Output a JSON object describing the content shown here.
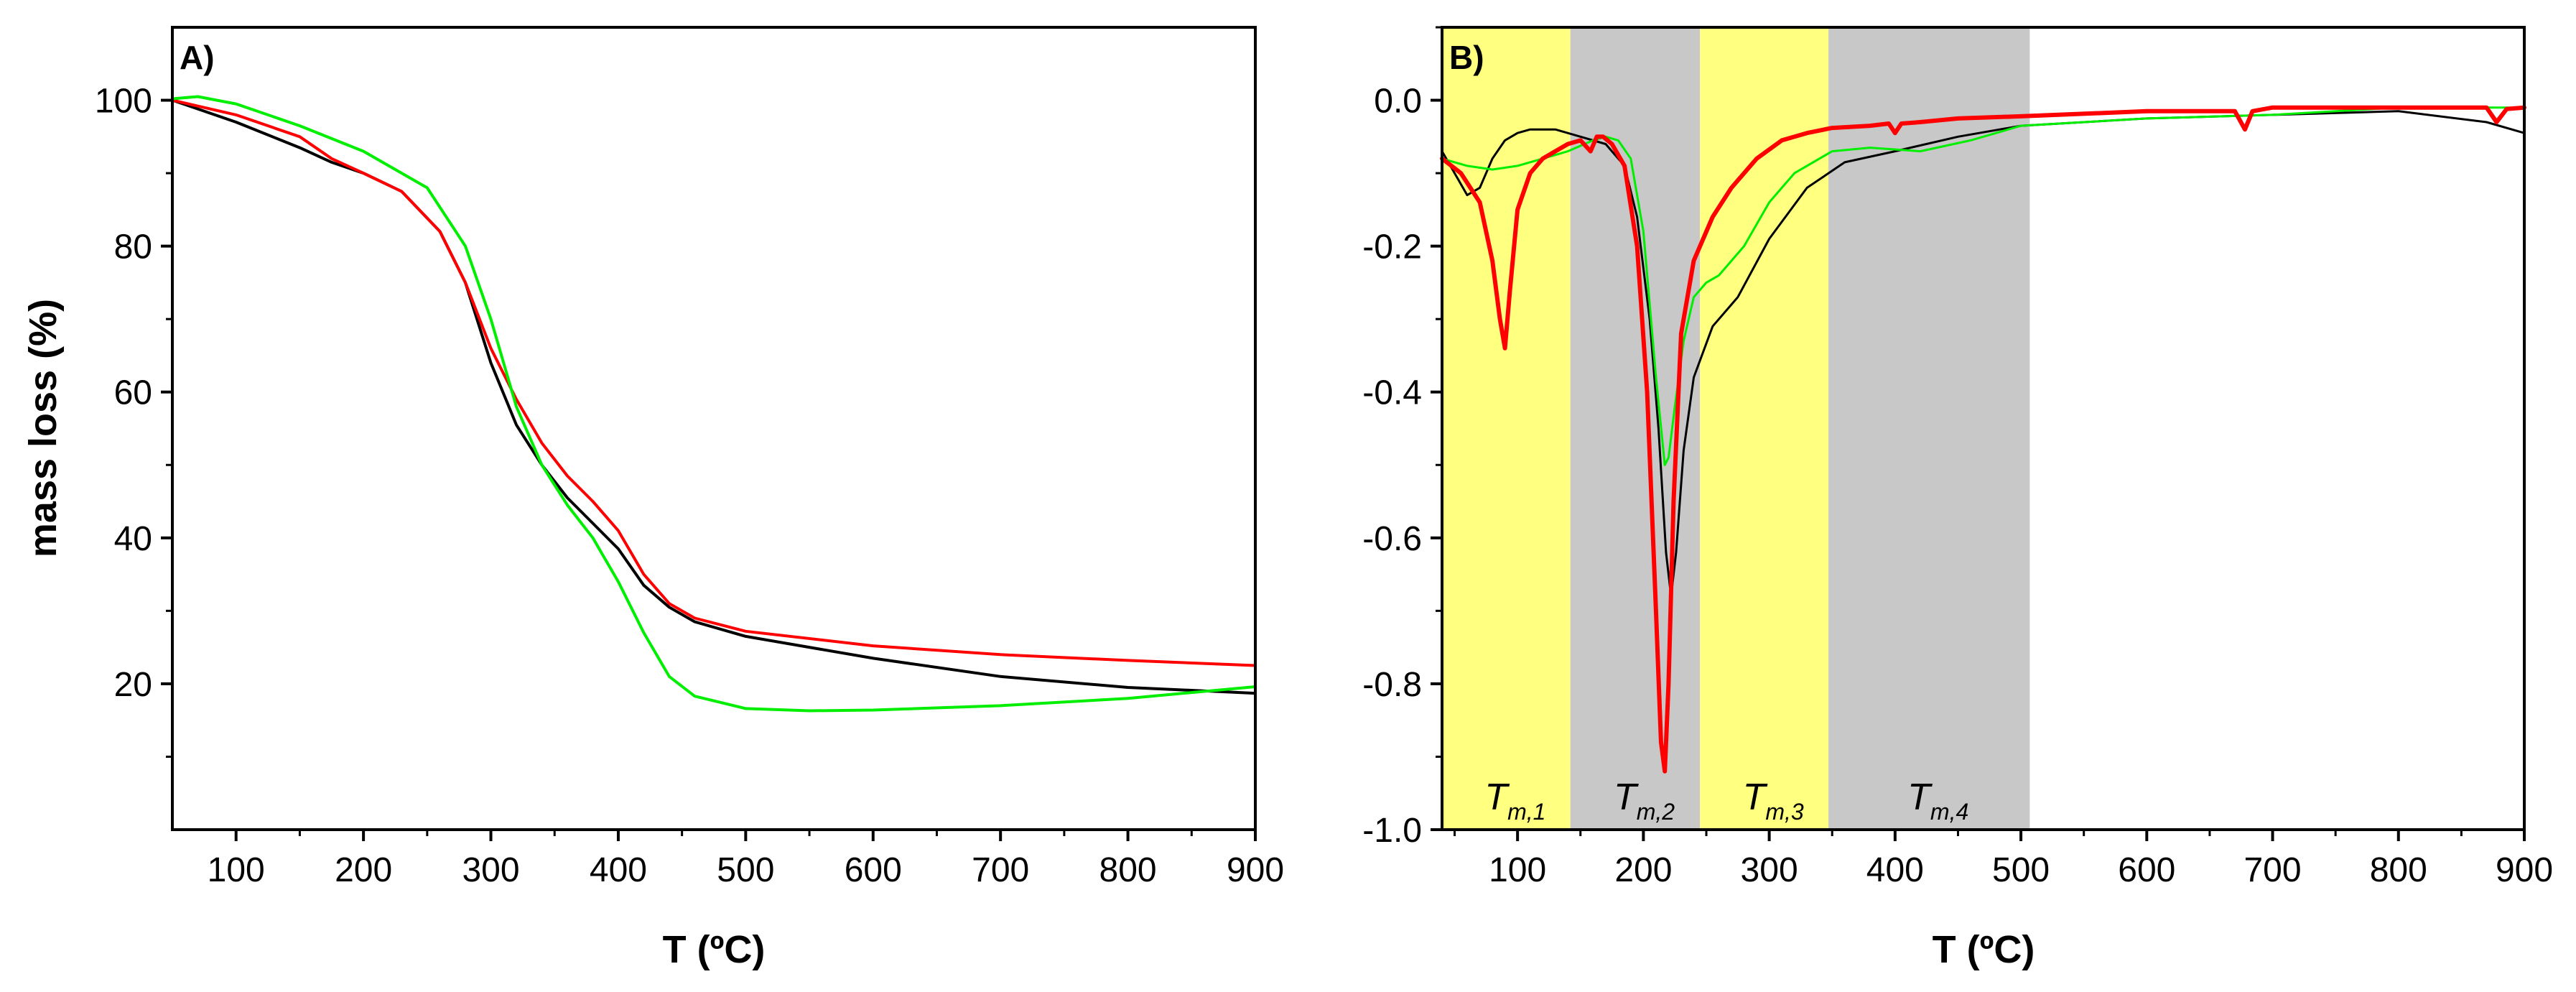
{
  "chart_data": [
    {
      "type": "line",
      "panel_label": "A)",
      "xlabel": "T (ºC)",
      "ylabel": "mass loss (%)",
      "xlim": [
        50,
        900
      ],
      "ylim": [
        0,
        110
      ],
      "xticks": [
        100,
        200,
        300,
        400,
        500,
        600,
        700,
        800,
        900
      ],
      "yticks": [
        20,
        40,
        60,
        80,
        100
      ],
      "series": [
        {
          "name": "black",
          "color": "#000000",
          "x": [
            50,
            100,
            150,
            175,
            200,
            230,
            260,
            280,
            300,
            320,
            340,
            360,
            380,
            400,
            420,
            440,
            460,
            500,
            600,
            700,
            800,
            900
          ],
          "y": [
            100,
            97,
            93.5,
            91.5,
            90,
            87.5,
            82,
            75,
            64,
            55.5,
            50,
            45.5,
            42,
            38.5,
            33.5,
            30.5,
            28.5,
            26.5,
            23.5,
            21,
            19.5,
            18.7
          ]
        },
        {
          "name": "red",
          "color": "#ff0000",
          "x": [
            50,
            100,
            150,
            175,
            200,
            230,
            260,
            280,
            300,
            320,
            340,
            360,
            380,
            400,
            420,
            440,
            460,
            500,
            600,
            700,
            800,
            900
          ],
          "y": [
            100,
            98,
            95,
            92,
            90,
            87.5,
            82,
            75,
            66,
            59,
            53,
            48.5,
            45,
            41,
            35,
            31,
            29,
            27.2,
            25.2,
            24,
            23.2,
            22.5
          ]
        },
        {
          "name": "green",
          "color": "#00ee00",
          "x": [
            50,
            70,
            100,
            150,
            200,
            250,
            280,
            300,
            320,
            340,
            360,
            380,
            400,
            420,
            440,
            460,
            500,
            550,
            600,
            700,
            800,
            900
          ],
          "y": [
            100.2,
            100.5,
            99.5,
            96.5,
            93,
            88,
            80,
            70,
            58,
            50,
            44.5,
            40,
            34,
            27,
            21,
            18.3,
            16.6,
            16.3,
            16.4,
            17,
            18,
            19.6
          ]
        }
      ]
    },
    {
      "type": "line",
      "panel_label": "B)",
      "xlabel": "T (ºC)",
      "ylabel": "",
      "xlim": [
        40,
        900
      ],
      "ylim": [
        -1.0,
        0.1
      ],
      "xticks": [
        100,
        200,
        300,
        400,
        500,
        600,
        700,
        800,
        900
      ],
      "yticks": [
        -1.0,
        -0.8,
        -0.6,
        -0.4,
        -0.2,
        0.0
      ],
      "ytick_labels": [
        "-1.0",
        "-0.8",
        "-0.6",
        "-0.4",
        "-0.2",
        "0.0"
      ],
      "regions": [
        {
          "from": 40,
          "to": 142,
          "color": "#ffff80",
          "label_main": "T",
          "label_sub": "m,1"
        },
        {
          "from": 142,
          "to": 245,
          "color": "#c8c8c8",
          "label_main": "T",
          "label_sub": "m,2"
        },
        {
          "from": 245,
          "to": 347,
          "color": "#ffff80",
          "label_main": "T",
          "label_sub": "m,3"
        },
        {
          "from": 347,
          "to": 507,
          "color": "#c8c8c8",
          "label_main": "T",
          "label_sub": "m,4"
        }
      ],
      "series": [
        {
          "name": "black",
          "color": "#000000",
          "width": 3,
          "x": [
            40,
            50,
            60,
            70,
            80,
            90,
            100,
            110,
            130,
            150,
            170,
            185,
            195,
            205,
            212,
            218,
            222,
            226,
            232,
            240,
            255,
            275,
            300,
            330,
            360,
            400,
            450,
            500,
            600,
            700,
            800,
            870,
            900
          ],
          "y": [
            -0.07,
            -0.1,
            -0.13,
            -0.12,
            -0.08,
            -0.055,
            -0.045,
            -0.04,
            -0.04,
            -0.05,
            -0.06,
            -0.09,
            -0.16,
            -0.3,
            -0.45,
            -0.62,
            -0.68,
            -0.62,
            -0.48,
            -0.38,
            -0.31,
            -0.27,
            -0.19,
            -0.12,
            -0.085,
            -0.07,
            -0.05,
            -0.035,
            -0.025,
            -0.02,
            -0.015,
            -0.03,
            -0.045
          ]
        },
        {
          "name": "green",
          "color": "#00ee00",
          "width": 3,
          "x": [
            40,
            60,
            80,
            100,
            120,
            140,
            160,
            170,
            180,
            190,
            200,
            210,
            217,
            220,
            225,
            232,
            240,
            250,
            260,
            280,
            300,
            320,
            350,
            380,
            420,
            460,
            500,
            550,
            600,
            700,
            800,
            900
          ],
          "y": [
            -0.08,
            -0.09,
            -0.095,
            -0.09,
            -0.08,
            -0.07,
            -0.055,
            -0.05,
            -0.055,
            -0.08,
            -0.18,
            -0.38,
            -0.5,
            -0.49,
            -0.42,
            -0.33,
            -0.27,
            -0.25,
            -0.24,
            -0.2,
            -0.14,
            -0.1,
            -0.07,
            -0.065,
            -0.07,
            -0.055,
            -0.035,
            -0.03,
            -0.025,
            -0.02,
            -0.01,
            -0.01
          ]
        },
        {
          "name": "red",
          "color": "#ff0000",
          "width": 6,
          "x": [
            40,
            55,
            70,
            80,
            86,
            90,
            94,
            100,
            110,
            120,
            130,
            140,
            150,
            158,
            163,
            168,
            175,
            185,
            195,
            203,
            210,
            214,
            217,
            220,
            224,
            230,
            240,
            255,
            270,
            290,
            310,
            330,
            350,
            380,
            395,
            400,
            405,
            420,
            450,
            500,
            600,
            670,
            678,
            684,
            700,
            800,
            870,
            878,
            886,
            900
          ],
          "y": [
            -0.08,
            -0.1,
            -0.14,
            -0.22,
            -0.3,
            -0.34,
            -0.26,
            -0.15,
            -0.1,
            -0.08,
            -0.07,
            -0.06,
            -0.055,
            -0.07,
            -0.05,
            -0.05,
            -0.06,
            -0.09,
            -0.2,
            -0.4,
            -0.7,
            -0.88,
            -0.92,
            -0.8,
            -0.55,
            -0.32,
            -0.22,
            -0.16,
            -0.12,
            -0.08,
            -0.055,
            -0.045,
            -0.038,
            -0.035,
            -0.032,
            -0.045,
            -0.032,
            -0.03,
            -0.025,
            -0.022,
            -0.015,
            -0.015,
            -0.04,
            -0.015,
            -0.01,
            -0.01,
            -0.01,
            -0.03,
            -0.012,
            -0.01
          ]
        }
      ]
    }
  ]
}
